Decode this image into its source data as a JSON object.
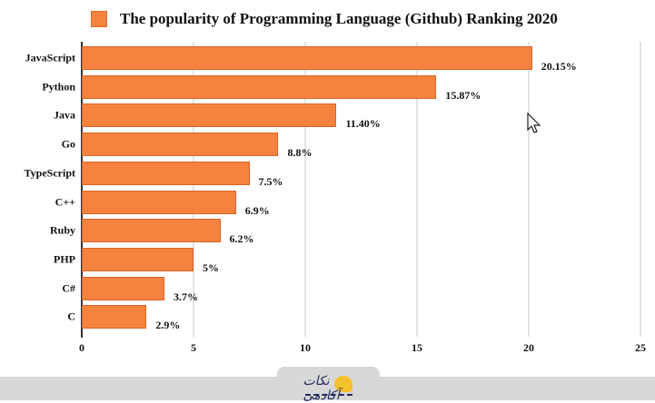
{
  "chart_data": {
    "type": "bar",
    "orientation": "horizontal",
    "title": "The popularity of Programming Language (Github) Ranking 2020",
    "legend": {
      "position": "top",
      "entries": [
        "The popularity of Programming Language (Github) Ranking 2020"
      ]
    },
    "categories": [
      "JavaScript",
      "Python",
      "Java",
      "Go",
      "TypeScript",
      "C++",
      "Ruby",
      "PHP",
      "C#",
      "C"
    ],
    "values": [
      20.15,
      15.87,
      11.4,
      8.8,
      7.5,
      6.9,
      6.2,
      5,
      3.7,
      2.9
    ],
    "value_labels": [
      "20.15%",
      "15.87%",
      "11.40%",
      "8.8%",
      "7.5%",
      "6.9%",
      "6.2%",
      "5%",
      "3.7%",
      "2.9%"
    ],
    "xlabel": "",
    "ylabel": "",
    "xlim": [
      0,
      25
    ],
    "xticks": [
      "0",
      "5",
      "10",
      "15",
      "20",
      "25"
    ],
    "grid": true,
    "bar_color": "#f5823f"
  },
  "legend_label": "The popularity of Programming Language (Github) Ranking 2020",
  "footer": {
    "logo_text": "نکات آکادمی"
  },
  "colors": {
    "bar": "#f5823f",
    "footer_bg": "#d8d8d8",
    "logo_accent": "#f6c12e"
  }
}
